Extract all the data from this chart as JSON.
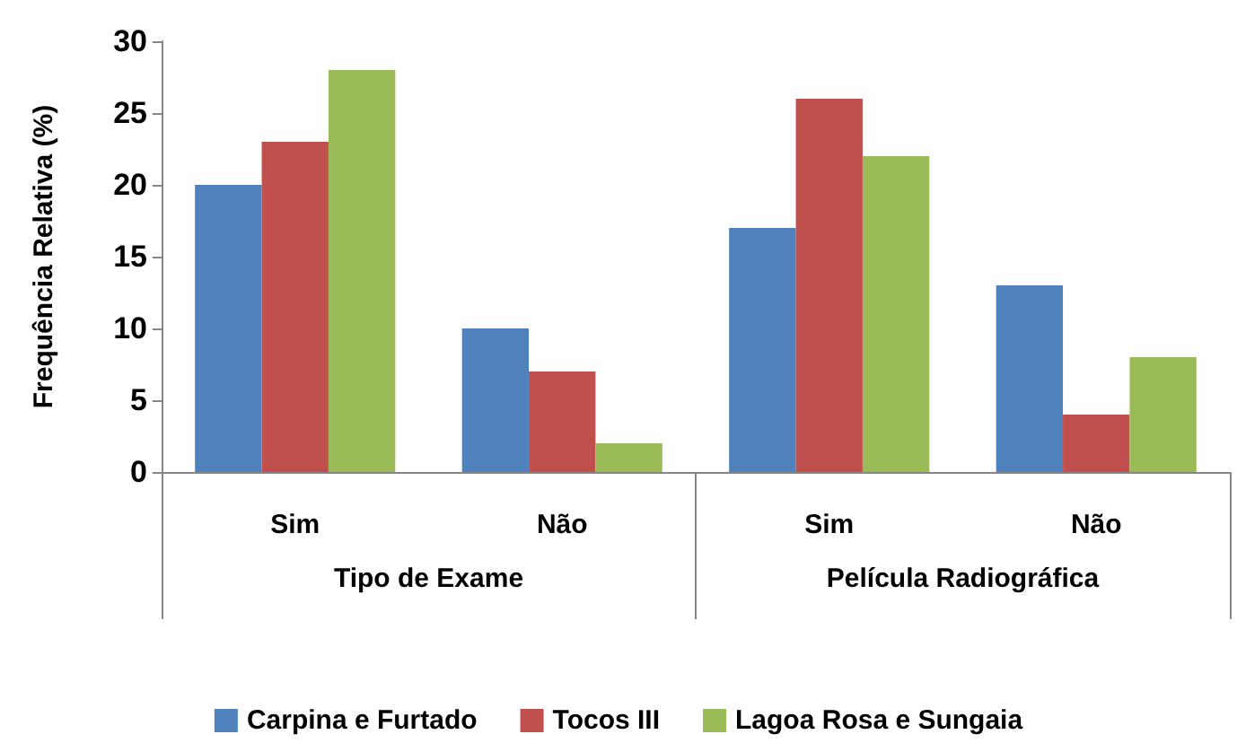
{
  "chart_data": {
    "type": "bar",
    "ylabel": "Frequência Relativa (%)",
    "categories": [
      "Sim",
      "Não",
      "Sim",
      "Não"
    ],
    "annotations": [
      "Tipo de Exame",
      "Película Radiográfica"
    ],
    "series": [
      {
        "name": "Carpina e Furtado",
        "color": "#4f81bd",
        "values": [
          20,
          10,
          17,
          13
        ]
      },
      {
        "name": "Tocos III",
        "color": "#c0504d",
        "values": [
          23,
          7,
          26,
          4
        ]
      },
      {
        "name": "Lagoa Rosa e Sungaia",
        "color": "#9bbb59",
        "values": [
          28,
          2,
          22,
          8
        ]
      }
    ],
    "ylim": [
      0,
      30
    ],
    "yticks": [
      0,
      5,
      10,
      15,
      20,
      25,
      30
    ],
    "grid": false,
    "legend": "bottom"
  }
}
